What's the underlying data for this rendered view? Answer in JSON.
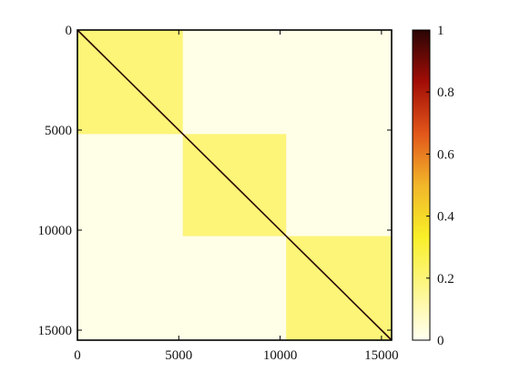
{
  "chart_data": {
    "type": "heatmap",
    "matrix_size": 15500,
    "x_ticks": [
      "0",
      "5000",
      "10000",
      "15000"
    ],
    "x_tick_values": [
      0,
      5000,
      10000,
      15000
    ],
    "y_ticks": [
      "0",
      "5000",
      "10000",
      "15000"
    ],
    "y_tick_values": [
      0,
      5000,
      10000,
      15000
    ],
    "xlim": [
      0,
      15500
    ],
    "ylim": [
      0,
      15500
    ],
    "y_axis_direction": "top-to-bottom",
    "blocks": [
      {
        "start": 0,
        "end": 5200,
        "value": 0.2
      },
      {
        "start": 5200,
        "end": 10300,
        "value": 0.2
      },
      {
        "start": 10300,
        "end": 15500,
        "value": 0.2
      }
    ],
    "background_value": 0.02,
    "diagonal_value": 1,
    "colorbar": {
      "ticks": [
        "0",
        "0.2",
        "0.4",
        "0.6",
        "0.8",
        "1"
      ],
      "tick_values": [
        0,
        0.2,
        0.4,
        0.6,
        0.8,
        1
      ],
      "range": [
        0,
        1
      ],
      "colormap_stops": [
        "#fffff2",
        "#fdf68c",
        "#f9ef28",
        "#f1b62a",
        "#e2561a",
        "#a20d06",
        "#2a0505"
      ]
    },
    "grid": false
  }
}
